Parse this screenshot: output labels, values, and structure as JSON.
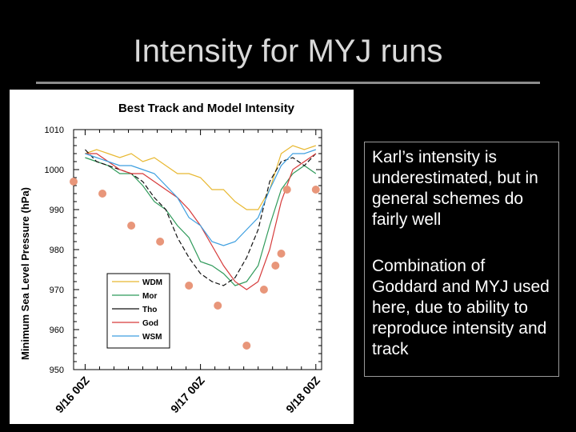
{
  "slide": {
    "title": "Intensity for MYJ runs",
    "notes": [
      "Karl’s intensity is underestimated, but in general schemes do fairly well",
      "Combination of Goddard and MYJ used here, due to ability to reproduce intensity and track"
    ]
  },
  "colors": {
    "background": "#000000",
    "best_track": "#e8967a",
    "WDM": "#e8b830",
    "Mor": "#2f9a5a",
    "Tho": "#111111",
    "God": "#d63a3a",
    "WSM": "#3d9fe0"
  },
  "chart_data": {
    "type": "line",
    "title": "Best Track and Model Intensity",
    "xlabel": "",
    "ylabel": "Minimum Sea Level Pressure (hPa)",
    "ylim": [
      950,
      1010
    ],
    "yticks": [
      "1010",
      "1000",
      "990",
      "980",
      "970",
      "960",
      "950"
    ],
    "xlim": [
      -0.1,
      2.05
    ],
    "xtick_positions": [
      0,
      1,
      2
    ],
    "xticks": [
      "9/16 00Z",
      "9/17 00Z",
      "9/18 00Z"
    ],
    "grid": false,
    "legend": "bottom-left",
    "best_track": {
      "x": [
        -0.1,
        0.15,
        0.4,
        0.65,
        0.9,
        1.15,
        1.4,
        1.55,
        1.65,
        1.7,
        1.75,
        2.0
      ],
      "y": [
        997,
        994,
        986,
        982,
        971,
        966,
        956,
        970,
        976,
        979,
        995,
        995
      ]
    },
    "series": [
      {
        "name": "WDM",
        "x": [
          0.0,
          0.1,
          0.2,
          0.3,
          0.4,
          0.5,
          0.6,
          0.7,
          0.8,
          0.9,
          1.0,
          1.1,
          1.2,
          1.3,
          1.4,
          1.5,
          1.6,
          1.7,
          1.8,
          1.9,
          2.0
        ],
        "y": [
          1004,
          1005,
          1004,
          1003,
          1004,
          1002,
          1003,
          1001,
          999,
          999,
          998,
          995,
          995,
          992,
          990,
          990,
          995,
          1004,
          1006,
          1005,
          1006
        ]
      },
      {
        "name": "Mor",
        "x": [
          0.0,
          0.1,
          0.2,
          0.3,
          0.4,
          0.5,
          0.6,
          0.7,
          0.8,
          0.9,
          1.0,
          1.1,
          1.2,
          1.3,
          1.4,
          1.5,
          1.6,
          1.7,
          1.8,
          1.9,
          2.0
        ],
        "y": [
          1003,
          1002,
          1001,
          999,
          999,
          996,
          992,
          990,
          986,
          983,
          977,
          976,
          974,
          971,
          972,
          976,
          986,
          995,
          999,
          1001,
          999
        ]
      },
      {
        "name": "Tho",
        "x": [
          0.0,
          0.1,
          0.2,
          0.3,
          0.4,
          0.5,
          0.6,
          0.7,
          0.8,
          0.9,
          1.0,
          1.1,
          1.2,
          1.3,
          1.4,
          1.5,
          1.6,
          1.7,
          1.8,
          1.9,
          2.0
        ],
        "y": [
          1005,
          1002,
          1001,
          1000,
          999,
          997,
          993,
          990,
          983,
          978,
          974,
          972,
          971,
          973,
          978,
          985,
          997,
          1002,
          1003,
          1001,
          1004
        ]
      },
      {
        "name": "God",
        "x": [
          0.0,
          0.1,
          0.2,
          0.3,
          0.4,
          0.5,
          0.6,
          0.7,
          0.8,
          0.9,
          1.0,
          1.1,
          1.2,
          1.3,
          1.4,
          1.5,
          1.6,
          1.7,
          1.8,
          1.9,
          2.0
        ],
        "y": [
          1004,
          1004,
          1002,
          1000,
          999,
          999,
          997,
          995,
          993,
          990,
          986,
          981,
          976,
          972,
          970,
          972,
          980,
          992,
          1000,
          1002,
          1004
        ]
      },
      {
        "name": "WSM",
        "x": [
          0.0,
          0.1,
          0.2,
          0.3,
          0.4,
          0.5,
          0.6,
          0.7,
          0.8,
          0.9,
          1.0,
          1.1,
          1.2,
          1.3,
          1.4,
          1.5,
          1.6,
          1.7,
          1.8,
          1.9,
          2.0
        ],
        "y": [
          1004,
          1003,
          1002,
          1001,
          1001,
          1000,
          999,
          996,
          993,
          988,
          986,
          982,
          981,
          982,
          985,
          988,
          995,
          1001,
          1004,
          1004,
          1005
        ]
      }
    ]
  }
}
